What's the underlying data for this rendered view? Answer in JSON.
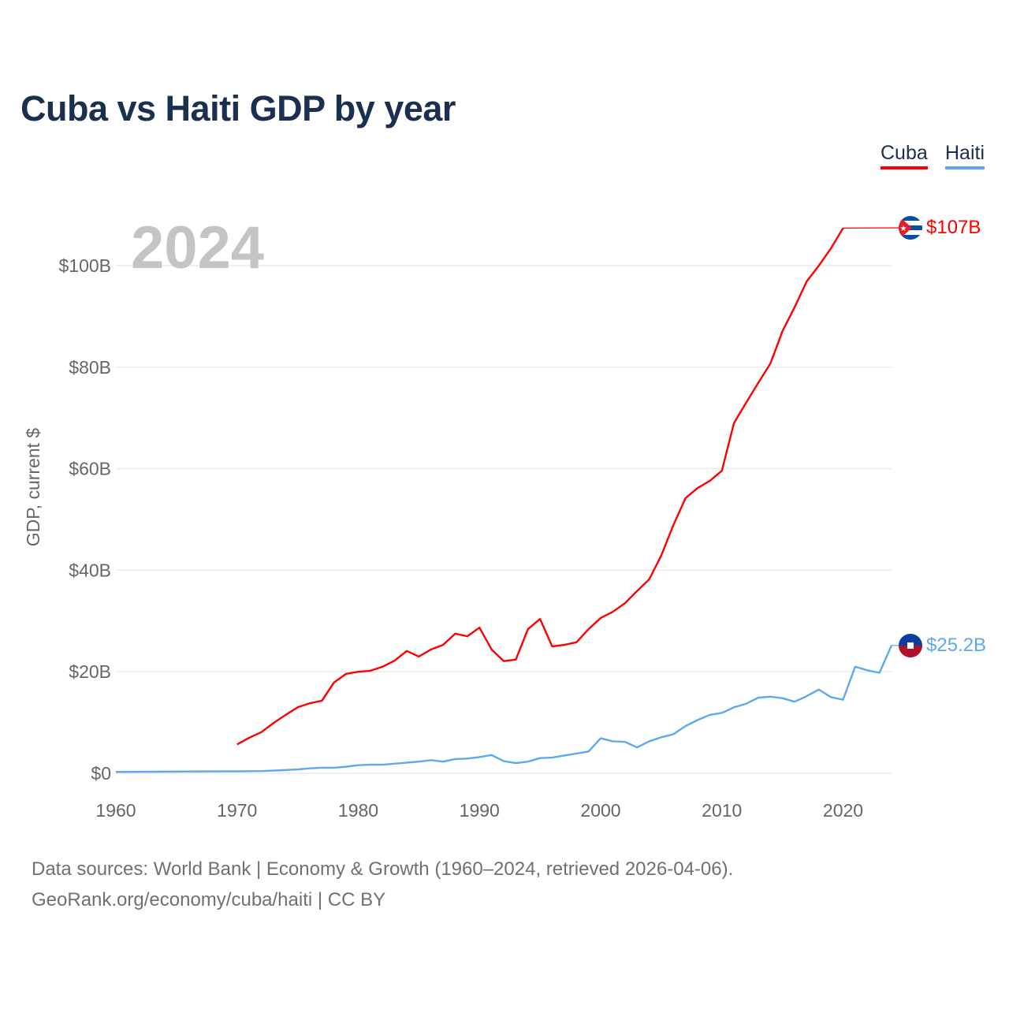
{
  "title": "Cuba vs Haiti GDP by year",
  "legend": [
    {
      "label": "Cuba",
      "color": "#ff0000"
    },
    {
      "label": "Haiti",
      "color": "#5ea8ef"
    }
  ],
  "year_watermark": "2024",
  "footer": {
    "line1": "Data sources: World Bank | Economy & Growth (1960–2024, retrieved 2026-04-06).",
    "line2": "GeoRank.org/economy/cuba/haiti | CC BY"
  },
  "chart_data": {
    "type": "line",
    "title": "Cuba vs Haiti GDP by year",
    "xlabel": "",
    "ylabel": "GDP, current $",
    "xlim": [
      1960,
      2024
    ],
    "ylim": [
      0,
      110
    ],
    "x_ticks": [
      1960,
      1970,
      1980,
      1990,
      2000,
      2010,
      2020
    ],
    "x_tick_labels": [
      "1960",
      "1970",
      "1980",
      "1990",
      "2000",
      "2010",
      "2020"
    ],
    "y_ticks": [
      0,
      20,
      40,
      60,
      80,
      100
    ],
    "y_tick_labels": [
      "$0",
      "$20B",
      "$40B",
      "$60B",
      "$80B",
      "$100B"
    ],
    "grid": true,
    "legend_position": "top-right",
    "units": "billions USD",
    "series": [
      {
        "name": "Cuba",
        "color": "#ff0000",
        "end_label": "$107B",
        "flag": "cuba-flag",
        "x_start": 1970,
        "values": [
          5.7,
          7.0,
          8.1,
          9.9,
          11.5,
          13.0,
          13.8,
          14.3,
          17.9,
          19.6,
          20.0,
          20.2,
          21.0,
          22.2,
          24.1,
          23.0,
          24.4,
          25.3,
          27.5,
          27.0,
          28.7,
          24.4,
          22.1,
          22.4,
          28.4,
          30.4,
          25.0,
          25.3,
          25.8,
          28.4,
          30.6,
          31.8,
          33.5,
          35.9,
          38.2,
          42.9,
          48.9,
          54.2,
          56.2,
          57.6,
          59.6,
          69.0,
          73.0,
          76.9,
          80.7,
          87.1,
          91.8,
          96.9,
          100.0,
          103.4,
          107.4
        ]
      },
      {
        "name": "Haiti",
        "color": "#5ea8ef",
        "end_label": "$25.2B",
        "flag": "haiti-flag",
        "x_start": 1960,
        "values": [
          0.27,
          0.28,
          0.3,
          0.31,
          0.33,
          0.34,
          0.36,
          0.37,
          0.38,
          0.39,
          0.39,
          0.41,
          0.43,
          0.53,
          0.64,
          0.76,
          0.98,
          1.1,
          1.1,
          1.3,
          1.6,
          1.7,
          1.7,
          1.9,
          2.1,
          2.3,
          2.6,
          2.3,
          2.8,
          2.9,
          3.2,
          3.6,
          2.4,
          2.0,
          2.3,
          3.0,
          3.1,
          3.5,
          3.9,
          4.3,
          6.9,
          6.3,
          6.2,
          5.1,
          6.3,
          7.1,
          7.7,
          9.3,
          10.5,
          11.5,
          11.9,
          13.0,
          13.7,
          14.9,
          15.1,
          14.8,
          14.1,
          15.2,
          16.5,
          15.0,
          14.5,
          21.0,
          20.3,
          19.8,
          25.2
        ]
      }
    ]
  }
}
